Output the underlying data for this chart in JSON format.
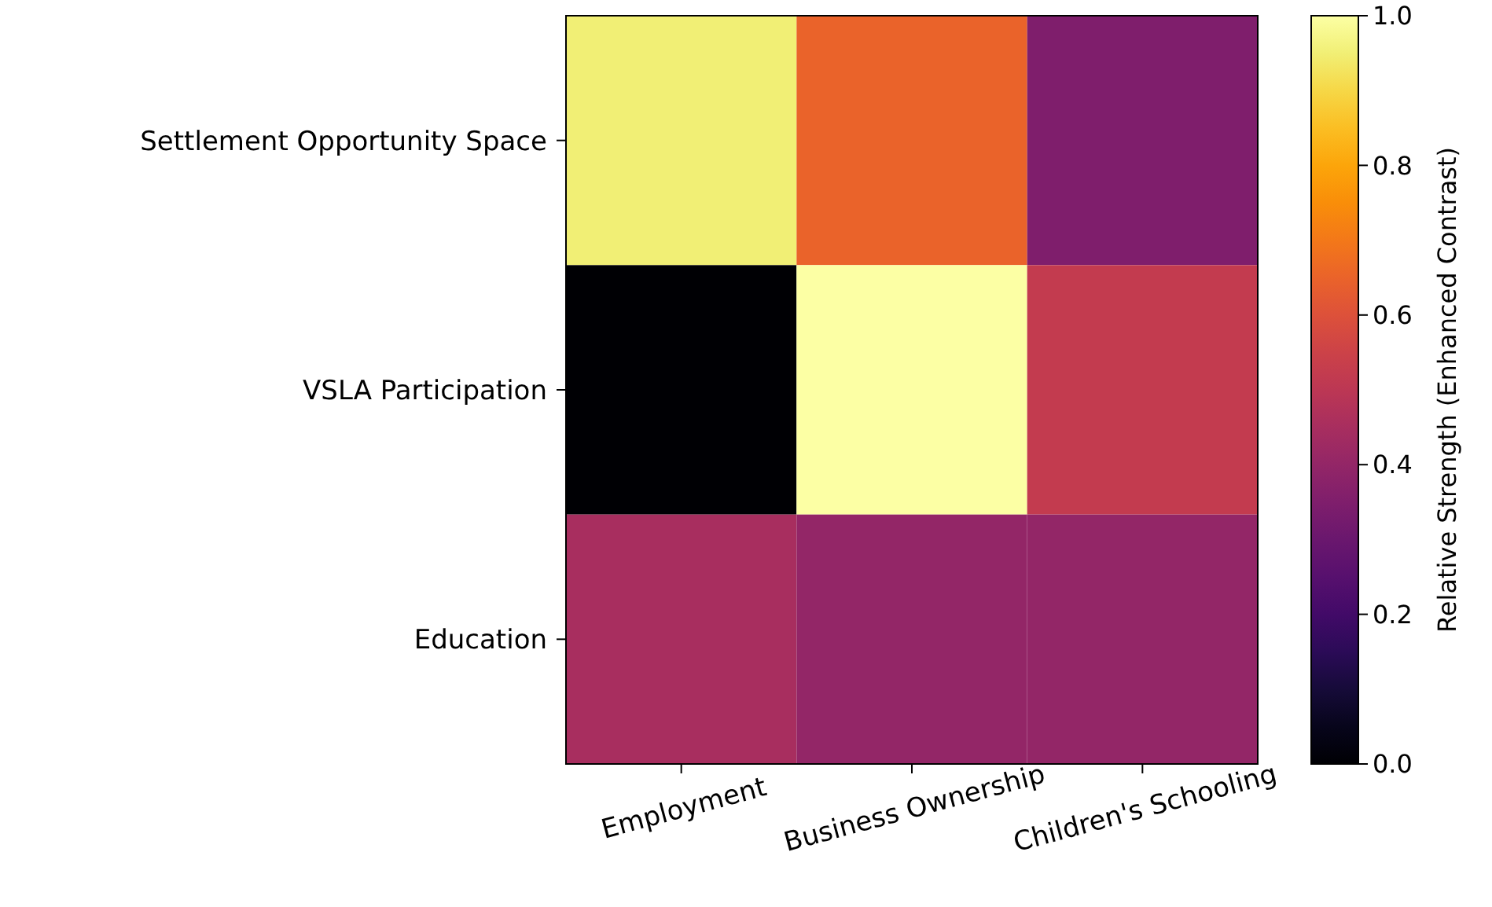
{
  "chart_data": {
    "type": "heatmap",
    "categories": [
      "Employment",
      "Business Ownership",
      "Children's Schooling"
    ],
    "y_categories": [
      "Settlement Opportunity Space",
      "VSLA Participation",
      "Education"
    ],
    "cells": [
      [
        0.95,
        0.65,
        0.35
      ],
      [
        0.0,
        1.0,
        0.52
      ],
      [
        0.45,
        0.4,
        0.4
      ]
    ],
    "clim": [
      0,
      1
    ],
    "cticks": [
      {
        "value": 0,
        "label": "0.0"
      },
      {
        "value": 0.2,
        "label": "0.2"
      },
      {
        "value": 0.4,
        "label": "0.4"
      },
      {
        "value": 0.6,
        "label": "0.6"
      },
      {
        "value": 0.8,
        "label": "0.8"
      },
      {
        "value": 1,
        "label": "1.0"
      }
    ],
    "clabel": "Relative Strength (Enhanced Contrast)"
  }
}
